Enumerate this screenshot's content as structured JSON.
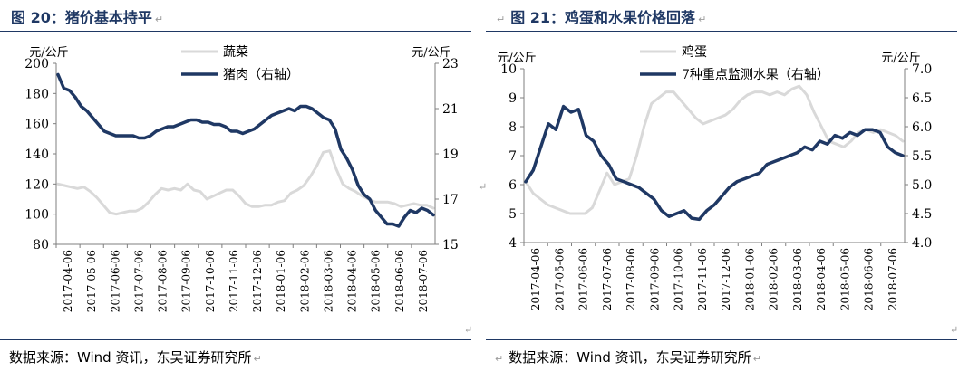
{
  "return_mark": "↵",
  "figure_left": {
    "title": "图 20：猪价基本持平",
    "source": "数据来源：Wind 资讯，东吴证券研究所"
  },
  "figure_right": {
    "title": "图 21：鸡蛋和水果价格回落",
    "source": "数据来源：Wind 资讯，东吴证券研究所"
  },
  "chart_data": [
    {
      "type": "line",
      "title": "",
      "y_left_unit": "元/公斤",
      "y_right_unit": "元/公斤",
      "ylim_left": [
        80,
        200
      ],
      "yticks_left": [
        80,
        100,
        120,
        140,
        160,
        180,
        200
      ],
      "ylim_right": [
        15,
        23
      ],
      "yticks_right": [
        15,
        17,
        19,
        21,
        23
      ],
      "x_tick_labels": [
        "2017-04-06",
        "2017-05-06",
        "2017-06-06",
        "2017-07-06",
        "2017-08-06",
        "2017-09-06",
        "2017-10-06",
        "2017-11-06",
        "2017-12-06",
        "2018-01-06",
        "2018-02-06",
        "2018-03-06",
        "2018-04-06",
        "2018-05-06",
        "2018-06-06",
        "2018-07-06"
      ],
      "legend_position": "top-right",
      "grid": false,
      "colors": {
        "series1": "#d9d9d9",
        "series2": "#1f3864"
      },
      "series": [
        {
          "name": "蔬菜",
          "axis": "left",
          "values": [
            120,
            119,
            118,
            117,
            118,
            115,
            111,
            106,
            101,
            100,
            101,
            102,
            102,
            104,
            108,
            113,
            117,
            116,
            117,
            116,
            120,
            116,
            115,
            110,
            112,
            114,
            116,
            116,
            112,
            107,
            105,
            105,
            106,
            106,
            108,
            109,
            114,
            116,
            119,
            125,
            132,
            141,
            142,
            130,
            120,
            117,
            115,
            112,
            110,
            108,
            108,
            108,
            107,
            105,
            106,
            107,
            106,
            106,
            104
          ]
        },
        {
          "name": "猪肉（右轴）",
          "axis": "right",
          "values": [
            22.5,
            21.9,
            21.8,
            21.5,
            21.1,
            20.9,
            20.6,
            20.3,
            20.0,
            19.9,
            19.8,
            19.8,
            19.8,
            19.8,
            19.7,
            19.7,
            19.8,
            20.0,
            20.1,
            20.2,
            20.2,
            20.3,
            20.4,
            20.5,
            20.5,
            20.4,
            20.4,
            20.3,
            20.3,
            20.2,
            20.0,
            20.0,
            19.9,
            20.0,
            20.1,
            20.3,
            20.5,
            20.7,
            20.8,
            20.9,
            21.0,
            20.9,
            21.1,
            21.1,
            21.0,
            20.8,
            20.6,
            20.5,
            20.1,
            19.2,
            18.8,
            18.3,
            17.6,
            17.2,
            17.0,
            16.5,
            16.2,
            15.9,
            15.9,
            15.8,
            16.2,
            16.5,
            16.4,
            16.6,
            16.5,
            16.3
          ]
        }
      ]
    },
    {
      "type": "line",
      "title": "",
      "y_left_unit": "元/公斤",
      "y_right_unit": "元/公斤",
      "ylim_left": [
        4,
        10
      ],
      "yticks_left": [
        4,
        5,
        6,
        7,
        8,
        9,
        10
      ],
      "ylim_right": [
        4.0,
        7.0
      ],
      "yticks_right": [
        "4.0",
        "4.5",
        "5.0",
        "5.5",
        "6.0",
        "6.5",
        "7.0"
      ],
      "x_tick_labels": [
        "2017-04-06",
        "2017-05-06",
        "2017-06-06",
        "2017-07-06",
        "2017-08-06",
        "2017-09-06",
        "2017-10-06",
        "2017-11-06",
        "2017-12-06",
        "2018-01-06",
        "2018-02-06",
        "2018-03-06",
        "2018-04-06",
        "2018-05-06",
        "2018-06-06",
        "2018-07-06"
      ],
      "legend_position": "top-right",
      "grid": false,
      "colors": {
        "series1": "#d9d9d9",
        "series2": "#1f3864"
      },
      "series": [
        {
          "name": "鸡蛋",
          "axis": "left",
          "values": [
            6.1,
            5.7,
            5.5,
            5.3,
            5.2,
            5.1,
            5.0,
            5.0,
            5.0,
            5.2,
            5.8,
            6.4,
            6.0,
            6.1,
            6.2,
            7.0,
            8.0,
            8.8,
            9.0,
            9.2,
            9.2,
            8.9,
            8.6,
            8.3,
            8.1,
            8.2,
            8.3,
            8.4,
            8.6,
            8.9,
            9.1,
            9.2,
            9.2,
            9.1,
            9.2,
            9.1,
            9.3,
            9.4,
            9.1,
            8.5,
            8.0,
            7.5,
            7.4,
            7.3,
            7.5,
            7.8,
            7.9,
            7.8,
            7.9,
            7.8,
            7.7,
            7.5
          ]
        },
        {
          "name": "7种重点监测水果（右轴）",
          "axis": "right",
          "values": [
            5.05,
            5.25,
            5.65,
            6.05,
            5.95,
            6.35,
            6.25,
            6.3,
            5.85,
            5.75,
            5.5,
            5.35,
            5.1,
            5.05,
            5.0,
            4.95,
            4.85,
            4.75,
            4.55,
            4.45,
            4.5,
            4.55,
            4.42,
            4.4,
            4.55,
            4.65,
            4.8,
            4.95,
            5.05,
            5.1,
            5.15,
            5.2,
            5.35,
            5.4,
            5.45,
            5.5,
            5.55,
            5.65,
            5.6,
            5.75,
            5.7,
            5.85,
            5.8,
            5.9,
            5.85,
            5.95,
            5.95,
            5.9,
            5.65,
            5.55,
            5.5
          ]
        }
      ]
    }
  ]
}
